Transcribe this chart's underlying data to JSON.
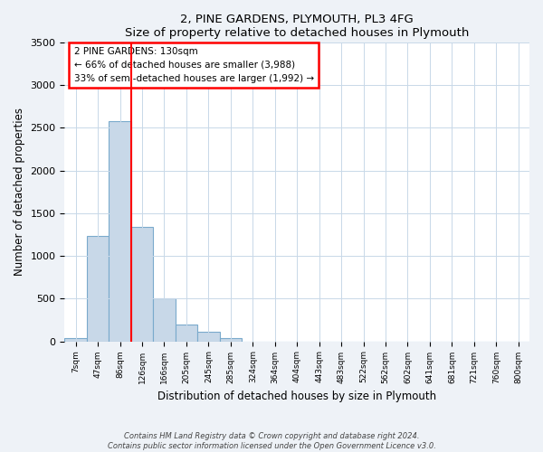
{
  "title": "2, PINE GARDENS, PLYMOUTH, PL3 4FG",
  "subtitle": "Size of property relative to detached houses in Plymouth",
  "xlabel": "Distribution of detached houses by size in Plymouth",
  "ylabel": "Number of detached properties",
  "categories": [
    "7sqm",
    "47sqm",
    "86sqm",
    "126sqm",
    "166sqm",
    "205sqm",
    "245sqm",
    "285sqm",
    "324sqm",
    "364sqm",
    "404sqm",
    "443sqm",
    "483sqm",
    "522sqm",
    "562sqm",
    "602sqm",
    "641sqm",
    "681sqm",
    "721sqm",
    "760sqm",
    "800sqm"
  ],
  "values": [
    40,
    1230,
    2580,
    1340,
    500,
    200,
    110,
    35,
    0,
    0,
    0,
    0,
    0,
    0,
    0,
    0,
    0,
    0,
    0,
    0,
    0
  ],
  "bar_color": "#c8d8e8",
  "bar_edge_color": "#7aaacc",
  "ylim": [
    0,
    3500
  ],
  "yticks": [
    0,
    500,
    1000,
    1500,
    2000,
    2500,
    3000,
    3500
  ],
  "annotation_line1": "2 PINE GARDENS: 130sqm",
  "annotation_line2": "← 66% of detached houses are smaller (3,988)",
  "annotation_line3": "33% of semi-detached houses are larger (1,992) →",
  "annotation_box_color": "#cc0000",
  "footer_line1": "Contains HM Land Registry data © Crown copyright and database right 2024.",
  "footer_line2": "Contains public sector information licensed under the Open Government Licence v3.0.",
  "background_color": "#eef2f7",
  "plot_background": "#ffffff",
  "grid_color": "#c8d8e8",
  "red_line_x": 2.5
}
